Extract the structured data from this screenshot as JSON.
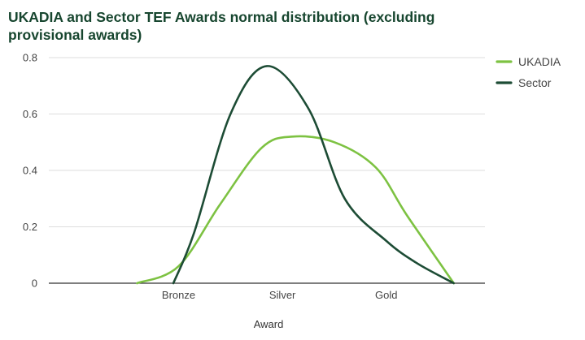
{
  "chart_data": {
    "type": "line",
    "title_lines": [
      "UKADIA and Sector TEF Awards normal distribution (excluding",
      "provisional awards)"
    ],
    "xlabel": "Award",
    "ylabel": "",
    "categories": [
      "Bronze",
      "Silver",
      "Gold"
    ],
    "x_range": [
      -1.25,
      2.95
    ],
    "ylim": [
      0,
      0.8
    ],
    "yticks": [
      0,
      0.2,
      0.4,
      0.6,
      0.8
    ],
    "ytick_labels": [
      "0",
      "0.2",
      "0.4",
      "0.6",
      "0.8"
    ],
    "grid": true,
    "legend_position": "right",
    "series": [
      {
        "name": "UKADIA",
        "color": "#7dc242",
        "x": [
          -0.4,
          0.0,
          0.4,
          0.8,
          1.1,
          1.5,
          1.9,
          2.2,
          2.65
        ],
        "y": [
          0.0,
          0.06,
          0.28,
          0.48,
          0.52,
          0.5,
          0.41,
          0.24,
          0.0
        ]
      },
      {
        "name": "Sector",
        "color": "#1d4c35",
        "x": [
          -0.05,
          0.15,
          0.5,
          0.85,
          1.25,
          1.6,
          2.0,
          2.3,
          2.65
        ],
        "y": [
          0.0,
          0.18,
          0.6,
          0.77,
          0.62,
          0.3,
          0.15,
          0.07,
          0.0
        ]
      }
    ],
    "colors": {
      "title": "#17462f",
      "gridline": "#dddddd",
      "baseline": "#333333"
    }
  }
}
